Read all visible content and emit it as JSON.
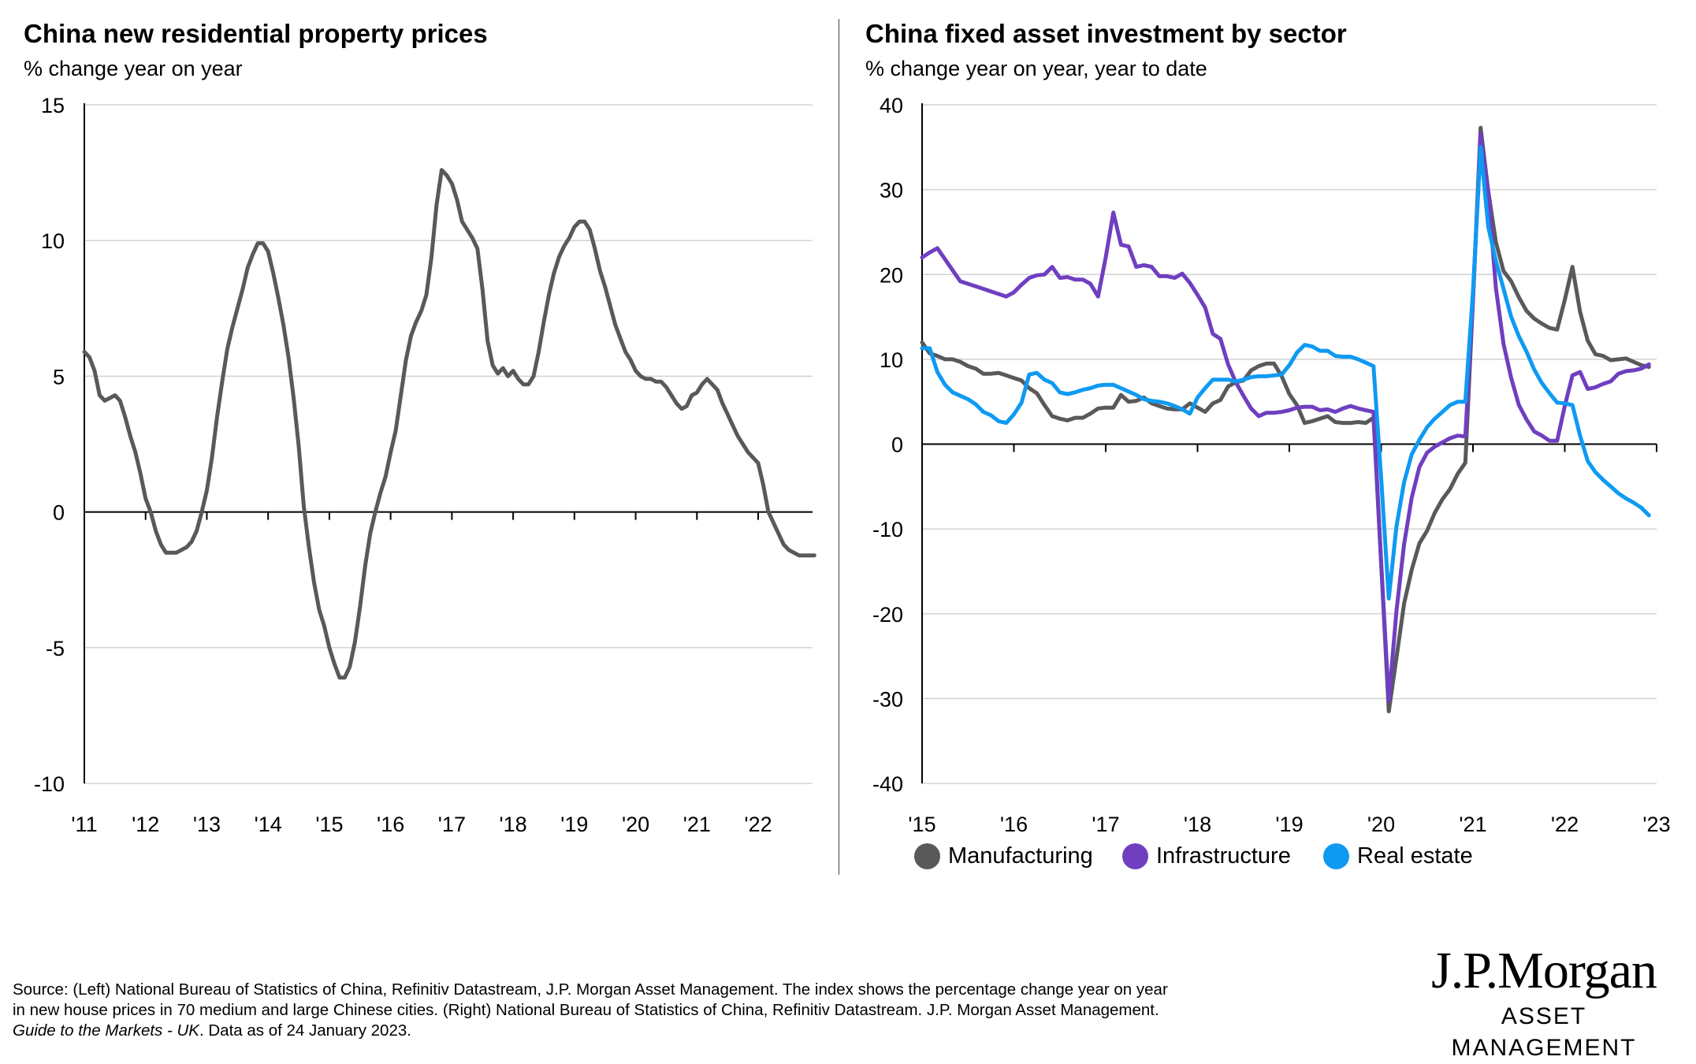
{
  "left": {
    "title": "China new residential property prices",
    "subtitle": "% change year on year"
  },
  "right": {
    "title": "China fixed asset investment by sector",
    "subtitle": "% change year on year, year to date"
  },
  "footer": {
    "line1": "Source: (Left) National Bureau of Statistics of China, Refinitiv Datastream, J.P. Morgan Asset Management. The index shows the percentage change year on year",
    "line2": "in new house prices in 70 medium and large Chinese cities. (Right) National Bureau of Statistics of China, Refinitiv Datastream. J.P. Morgan Asset Management.",
    "line3_italic": "Guide to the Markets - UK",
    "line3_rest": ". Data as of 24 January 2023."
  },
  "logo": {
    "main": "J.P.Morgan",
    "sub": "ASSET MANAGEMENT"
  },
  "chart_data": [
    {
      "type": "line",
      "title": "China new residential property prices",
      "ylabel": "% change year on year",
      "ylim": [
        -10,
        15
      ],
      "yticks": [
        "15",
        "10",
        "5",
        "0",
        "-5",
        "-10"
      ],
      "ytick_values": [
        15,
        10,
        5,
        0,
        -5,
        -10
      ],
      "xticks": [
        "'11",
        "'12",
        "'13",
        "'14",
        "'15",
        "'16",
        "'17",
        "'18",
        "'19",
        "'20",
        "'21",
        "'22"
      ],
      "x_start_year": 2011,
      "frequency": "monthly",
      "grid": true,
      "series": [
        {
          "name": "New residential property prices",
          "color": "#58595b",
          "values": [
            5.9,
            5.7,
            5.2,
            4.3,
            4.1,
            4.2,
            4.3,
            4.1,
            3.5,
            2.8,
            2.2,
            1.4,
            0.5,
            0.0,
            -0.7,
            -1.2,
            -1.5,
            -1.5,
            -1.5,
            -1.4,
            -1.3,
            -1.1,
            -0.7,
            0.0,
            0.8,
            2.0,
            3.5,
            4.8,
            6.0,
            6.8,
            7.5,
            8.2,
            9.0,
            9.5,
            9.9,
            9.9,
            9.6,
            8.8,
            7.9,
            6.9,
            5.7,
            4.2,
            2.4,
            0.2,
            -1.3,
            -2.6,
            -3.6,
            -4.2,
            -5.0,
            -5.6,
            -6.1,
            -6.1,
            -5.7,
            -4.8,
            -3.5,
            -2.0,
            -0.8,
            0.0,
            0.7,
            1.3,
            2.2,
            3.0,
            4.3,
            5.6,
            6.5,
            7.0,
            7.4,
            8.0,
            9.4,
            11.3,
            12.6,
            12.4,
            12.1,
            11.5,
            10.7,
            10.4,
            10.1,
            9.7,
            8.2,
            6.3,
            5.4,
            5.1,
            5.3,
            5.0,
            5.2,
            4.9,
            4.7,
            4.7,
            5.0,
            5.9,
            7.0,
            8.0,
            8.8,
            9.4,
            9.8,
            10.1,
            10.5,
            10.7,
            10.7,
            10.4,
            9.7,
            8.9,
            8.3,
            7.6,
            6.9,
            6.4,
            5.9,
            5.6,
            5.2,
            5.0,
            4.9,
            4.9,
            4.8,
            4.8,
            4.6,
            4.3,
            4.0,
            3.8,
            3.9,
            4.3,
            4.4,
            4.7,
            4.9,
            4.7,
            4.5,
            4.0,
            3.6,
            3.2,
            2.8,
            2.5,
            2.2,
            2.0,
            1.8,
            1.0,
            0.0,
            -0.4,
            -0.8,
            -1.2,
            -1.4,
            -1.5,
            -1.6,
            -1.6,
            -1.6,
            -1.6
          ]
        }
      ]
    },
    {
      "type": "line",
      "title": "China fixed asset investment by sector",
      "ylabel": "% change year on year, year to date",
      "ylim": [
        -40,
        40
      ],
      "yticks": [
        "40",
        "30",
        "20",
        "10",
        "0",
        "-10",
        "-20",
        "-30",
        "-40"
      ],
      "ytick_values": [
        40,
        30,
        20,
        10,
        0,
        -10,
        -20,
        -30,
        -40
      ],
      "xticks": [
        "'15",
        "'16",
        "'17",
        "'18",
        "'19",
        "'20",
        "'21",
        "'22",
        "'23"
      ],
      "x_start_year": 2015,
      "frequency": "monthly",
      "grid": true,
      "legend": "bottom",
      "series": [
        {
          "name": "Manufacturing",
          "color": "#58595b",
          "values": [
            12,
            10.7,
            10.4,
            10,
            10,
            9.7,
            9.2,
            8.9,
            8.3,
            8.3,
            8.4,
            8.1,
            7.8,
            7.5,
            6.6,
            6.0,
            4.6,
            3.3,
            3.0,
            2.8,
            3.1,
            3.1,
            3.6,
            4.2,
            4.3,
            4.3,
            5.8,
            5.0,
            5.1,
            5.5,
            4.8,
            4.5,
            4.2,
            4.1,
            4.1,
            4.8,
            4.3,
            3.8,
            4.8,
            5.2,
            6.8,
            7.3,
            7.5,
            8.7,
            9.2,
            9.5,
            9.5,
            8.0,
            5.9,
            4.6,
            2.5,
            2.7,
            3.0,
            3.3,
            2.6,
            2.5,
            2.5,
            2.6,
            2.5,
            3.1,
            -14,
            -31.5,
            -25.2,
            -18.8,
            -14.8,
            -11.7,
            -10.2,
            -8.1,
            -6.5,
            -5.3,
            -3.5,
            -2.2,
            17,
            37.3,
            29.8,
            23.8,
            20.4,
            19.2,
            17.3,
            15.7,
            14.8,
            14.2,
            13.7,
            13.5,
            17,
            20.9,
            15.6,
            12.2,
            10.6,
            10.4,
            9.9,
            10.0,
            10.1,
            9.7,
            9.3,
            9.1
          ]
        },
        {
          "name": "Infrastructure",
          "color": "#6f3fc0",
          "values": [
            22,
            22.6,
            23.1,
            21.8,
            20.5,
            19.2,
            18.9,
            18.6,
            18.3,
            18.0,
            17.7,
            17.4,
            17.9,
            18.8,
            19.6,
            19.9,
            20.0,
            20.9,
            19.6,
            19.7,
            19.4,
            19.4,
            18.9,
            17.4,
            22,
            27.3,
            23.5,
            23.3,
            20.9,
            21.1,
            20.9,
            19.8,
            19.8,
            19.6,
            20.1,
            19.0,
            17.6,
            16.1,
            13.0,
            12.4,
            9.4,
            7.3,
            5.7,
            4.2,
            3.3,
            3.7,
            3.7,
            3.8,
            4.0,
            4.3,
            4.4,
            4.4,
            4.0,
            4.1,
            3.8,
            4.2,
            4.5,
            4.2,
            4.0,
            3.8,
            -14,
            -30.3,
            -19.7,
            -11.8,
            -6.3,
            -2.7,
            -1.0,
            -0.3,
            0.2,
            0.7,
            1.0,
            0.9,
            17,
            36.6,
            29.7,
            18.4,
            11.8,
            7.8,
            4.6,
            2.9,
            1.5,
            1.0,
            0.4,
            0.4,
            4.5,
            8.1,
            8.5,
            6.5,
            6.7,
            7.1,
            7.4,
            8.3,
            8.6,
            8.7,
            8.9,
            9.4
          ]
        },
        {
          "name": "Real estate",
          "color": "#0f9af2",
          "values": [
            11.3,
            11.3,
            8.5,
            7.0,
            6.1,
            5.7,
            5.3,
            4.7,
            3.8,
            3.4,
            2.7,
            2.5,
            3.5,
            4.9,
            8.2,
            8.4,
            7.6,
            7.2,
            6.1,
            5.9,
            6.1,
            6.4,
            6.6,
            6.9,
            7.0,
            7.0,
            6.6,
            6.2,
            5.8,
            5.3,
            5.1,
            5.0,
            4.8,
            4.5,
            4.1,
            3.6,
            5.5,
            6.6,
            7.6,
            7.6,
            7.6,
            7.4,
            7.6,
            7.9,
            8.0,
            8.0,
            8.1,
            8.2,
            9.3,
            10.8,
            11.7,
            11.5,
            11.0,
            11.0,
            10.4,
            10.3,
            10.3,
            10.0,
            9.6,
            9.2,
            -4,
            -18.2,
            -9.7,
            -4.5,
            -1.2,
            0.5,
            2.0,
            3.0,
            3.8,
            4.6,
            5.0,
            5.0,
            18,
            35,
            25.6,
            21.6,
            18.3,
            15.0,
            12.7,
            10.9,
            8.8,
            7.2,
            6.0,
            4.9,
            4.8,
            4.6,
            1.0,
            -2.0,
            -3.3,
            -4.2,
            -5.0,
            -5.8,
            -6.4,
            -6.9,
            -7.5,
            -8.4
          ]
        }
      ]
    }
  ]
}
